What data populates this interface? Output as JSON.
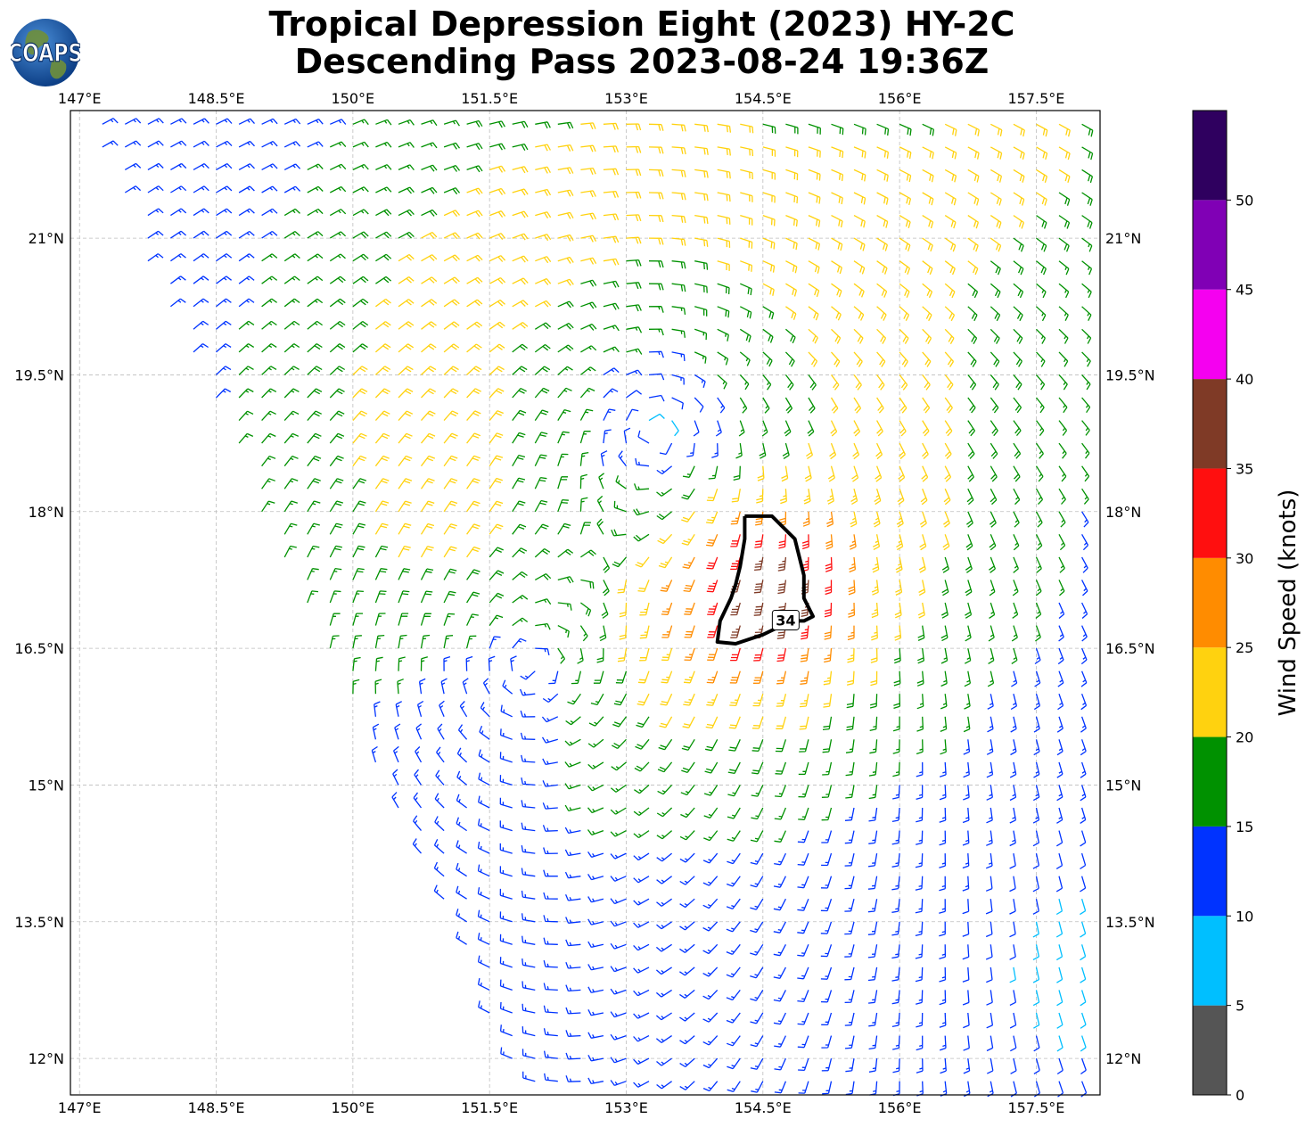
{
  "title": {
    "line1": "Tropical Depression Eight (2023) HY-2C",
    "line2": "Descending Pass 2023-08-24 19:36Z"
  },
  "logo": {
    "text": "COAPS",
    "icon": "globe-logo-icon"
  },
  "map": {
    "lon_range": [
      146.9,
      158.2
    ],
    "lat_range": [
      11.6,
      22.4
    ],
    "lon_ticks": [
      {
        "value": 147.0,
        "label": "147°E"
      },
      {
        "value": 148.5,
        "label": "148.5°E"
      },
      {
        "value": 150.0,
        "label": "150°E"
      },
      {
        "value": 151.5,
        "label": "151.5°E"
      },
      {
        "value": 153.0,
        "label": "153°E"
      },
      {
        "value": 154.5,
        "label": "154.5°E"
      },
      {
        "value": 156.0,
        "label": "156°E"
      },
      {
        "value": 157.5,
        "label": "157.5°E"
      }
    ],
    "lat_ticks": [
      {
        "value": 12.0,
        "label": "12°N"
      },
      {
        "value": 13.5,
        "label": "13.5°N"
      },
      {
        "value": 15.0,
        "label": "15°N"
      },
      {
        "value": 16.5,
        "label": "16.5°N"
      },
      {
        "value": 18.0,
        "label": "18°N"
      },
      {
        "value": 19.5,
        "label": "19.5°N"
      },
      {
        "value": 21.0,
        "label": "21°N"
      }
    ],
    "gridlines": true,
    "circulation_centers": [
      {
        "lon": 153.35,
        "lat": 19.0
      },
      {
        "lon": 151.9,
        "lat": 16.25
      }
    ],
    "contour_34kt": {
      "label": "34",
      "points": [
        [
          154.3,
          17.95
        ],
        [
          154.6,
          17.95
        ],
        [
          154.85,
          17.7
        ],
        [
          154.95,
          17.3
        ],
        [
          154.95,
          17.05
        ],
        [
          155.05,
          16.85
        ],
        [
          154.95,
          16.8
        ],
        [
          154.85,
          16.8
        ],
        [
          154.75,
          16.77
        ],
        [
          154.5,
          16.65
        ],
        [
          154.2,
          16.55
        ],
        [
          154.0,
          16.57
        ],
        [
          154.03,
          16.8
        ],
        [
          154.15,
          17.05
        ],
        [
          154.2,
          17.2
        ],
        [
          154.25,
          17.4
        ],
        [
          154.3,
          17.7
        ],
        [
          154.3,
          17.95
        ]
      ]
    }
  },
  "colorbar": {
    "label": "Wind Speed (knots)",
    "range": [
      0,
      55
    ],
    "ticks": [
      {
        "value": 0,
        "label": "0"
      },
      {
        "value": 5,
        "label": "5"
      },
      {
        "value": 10,
        "label": "10"
      },
      {
        "value": 15,
        "label": "15"
      },
      {
        "value": 20,
        "label": "20"
      },
      {
        "value": 25,
        "label": "25"
      },
      {
        "value": 30,
        "label": "30"
      },
      {
        "value": 35,
        "label": "35"
      },
      {
        "value": 40,
        "label": "40"
      },
      {
        "value": 45,
        "label": "45"
      },
      {
        "value": 50,
        "label": "50"
      }
    ],
    "bins": [
      {
        "min": 0,
        "max": 5,
        "color": "#555555"
      },
      {
        "min": 5,
        "max": 10,
        "color": "#00bfff"
      },
      {
        "min": 10,
        "max": 15,
        "color": "#0033ff"
      },
      {
        "min": 15,
        "max": 20,
        "color": "#009100"
      },
      {
        "min": 20,
        "max": 25,
        "color": "#ffd20f"
      },
      {
        "min": 25,
        "max": 30,
        "color": "#ff8c00"
      },
      {
        "min": 30,
        "max": 35,
        "color": "#ff0f0f"
      },
      {
        "min": 35,
        "max": 40,
        "color": "#7f3a26"
      },
      {
        "min": 40,
        "max": 45,
        "color": "#f500f0"
      },
      {
        "min": 45,
        "max": 50,
        "color": "#8000b5"
      },
      {
        "min": 50,
        "max": 55,
        "color": "#2f005f"
      }
    ]
  }
}
